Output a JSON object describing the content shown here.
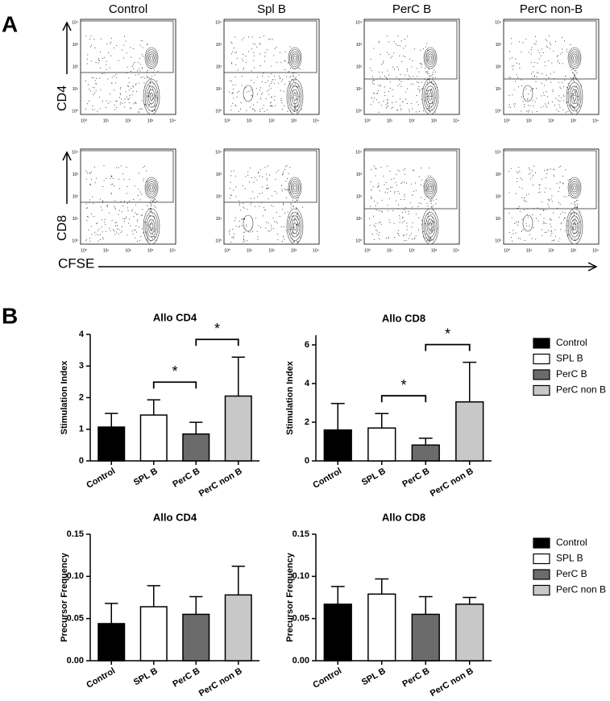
{
  "panel_a": {
    "letter": "A",
    "columns": [
      "Control",
      "Spl B",
      "PerC B",
      "PerC non-B"
    ],
    "rows": [
      "CD4",
      "CD8"
    ],
    "x_label": "CFSE",
    "ticks": [
      "10⁰",
      "10¹",
      "10²",
      "10³",
      "10⁴"
    ]
  },
  "panel_b": {
    "letter": "B"
  },
  "chart_data": [
    {
      "type": "bar",
      "title": "Allo CD4",
      "y_label": "Stimulation Index",
      "categories": [
        "Control",
        "SPL B",
        "PerC B",
        "PerC non B"
      ],
      "values": [
        1.07,
        1.45,
        0.85,
        2.05
      ],
      "errors": [
        0.43,
        0.48,
        0.37,
        1.23
      ],
      "colors": [
        "#000000",
        "#ffffff",
        "#6b6b6b",
        "#c8c8c8"
      ],
      "ylim": [
        0,
        4
      ],
      "yticks": [
        0,
        1,
        2,
        3,
        4
      ],
      "legend": "right",
      "annotations": [
        {
          "text": "*",
          "from": 1,
          "to": 2
        },
        {
          "text": "*",
          "from": 2,
          "to": 3
        }
      ]
    },
    {
      "type": "bar",
      "title": "Allo CD8",
      "y_label": "Stimulation Index",
      "categories": [
        "Control",
        "SPL B",
        "PerC B",
        "PerC non B"
      ],
      "values": [
        1.6,
        1.7,
        0.82,
        3.05
      ],
      "errors": [
        1.37,
        0.75,
        0.35,
        2.05
      ],
      "colors": [
        "#000000",
        "#ffffff",
        "#6b6b6b",
        "#c8c8c8"
      ],
      "ylim": [
        0,
        6.5
      ],
      "yticks": [
        0,
        2,
        4,
        6
      ],
      "annotations": [
        {
          "text": "*",
          "from": 1,
          "to": 2
        },
        {
          "text": "*",
          "from": 2,
          "to": 3
        }
      ]
    },
    {
      "type": "bar",
      "title": "Allo CD4",
      "y_label": "Precursor Frequency",
      "categories": [
        "Control",
        "SPL B",
        "PerC B",
        "PerC non B"
      ],
      "values": [
        0.044,
        0.064,
        0.055,
        0.078
      ],
      "errors": [
        0.024,
        0.025,
        0.021,
        0.034
      ],
      "colors": [
        "#000000",
        "#ffffff",
        "#6b6b6b",
        "#c8c8c8"
      ],
      "ylim": [
        0,
        0.15
      ],
      "yticks": [
        {
          "value": 0,
          "label": "0.00"
        },
        {
          "value": 0.05,
          "label": "0.05"
        },
        {
          "value": 0.1,
          "label": "0.10"
        },
        {
          "value": 0.15,
          "label": "0.15"
        }
      ],
      "legend": "right"
    },
    {
      "type": "bar",
      "title": "Allo CD8",
      "y_label": "Precursor Frequency",
      "categories": [
        "Control",
        "SPL B",
        "PerC B",
        "PerC non B"
      ],
      "values": [
        0.067,
        0.079,
        0.055,
        0.067
      ],
      "errors": [
        0.021,
        0.018,
        0.021,
        0.008
      ],
      "colors": [
        "#000000",
        "#ffffff",
        "#6b6b6b",
        "#c8c8c8"
      ],
      "ylim": [
        0,
        0.15
      ],
      "yticks": [
        {
          "value": 0,
          "label": "0.00"
        },
        {
          "value": 0.05,
          "label": "0.05"
        },
        {
          "value": 0.1,
          "label": "0.10"
        },
        {
          "value": 0.15,
          "label": "0.15"
        }
      ]
    }
  ]
}
